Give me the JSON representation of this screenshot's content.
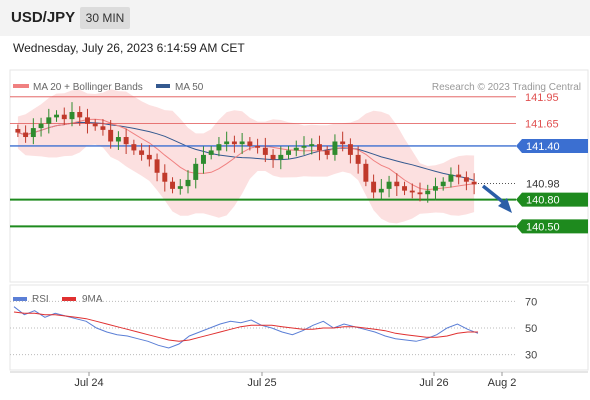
{
  "header": {
    "symbol": "USD/JPY",
    "interval": "30 MIN",
    "timestamp": "Wednesday, July 26, 2023 6:14:59 AM CET"
  },
  "legend": {
    "ma20_label": "MA 20 + Bollinger Bands",
    "ma50_label": "MA 50",
    "credit": "Research © 2023 Trading Central"
  },
  "rsi_legend": {
    "rsi_label": "RSI",
    "ma_label": "9MA"
  },
  "colors": {
    "ma20": "#f08080",
    "bollinger_fill": "#fbdada",
    "ma50": "#34598f",
    "resistance": "#e05050",
    "pivot": "#3b6fd1",
    "support": "#1e8a1e",
    "candle_up": "#2e8b2e",
    "candle_down": "#c0392b",
    "rsi": "#5b7fd6",
    "rsi_ma": "#e03030",
    "arrow": "#2b5ea7"
  },
  "chart_data": [
    {
      "type": "candlestick",
      "title": "",
      "x_ticks": [
        "Jul 24",
        "Jul 25",
        "Jul 26",
        "Aug 2"
      ],
      "ylim": [
        139.9,
        142.25
      ],
      "current_price": "140.98",
      "levels": [
        {
          "value": 141.95,
          "label": "141.95",
          "role": "resistance"
        },
        {
          "value": 141.65,
          "label": "141.65",
          "role": "resistance"
        },
        {
          "value": 141.4,
          "label": "141.40",
          "role": "pivot"
        },
        {
          "value": 140.8,
          "label": "140.80",
          "role": "support"
        },
        {
          "value": 140.5,
          "label": "140.50",
          "role": "support"
        }
      ],
      "forecast": "down",
      "series": [
        {
          "name": "MA 20 + Bollinger Bands"
        },
        {
          "name": "MA 50"
        }
      ],
      "approx_close": [
        141.55,
        141.5,
        141.6,
        141.65,
        141.72,
        141.75,
        141.7,
        141.78,
        141.72,
        141.65,
        141.62,
        141.58,
        141.45,
        141.5,
        141.42,
        141.35,
        141.3,
        141.25,
        141.1,
        141.0,
        140.92,
        140.95,
        141.02,
        141.2,
        141.3,
        141.35,
        141.42,
        141.45,
        141.42,
        141.45,
        141.4,
        141.38,
        141.3,
        141.25,
        141.3,
        141.35,
        141.38,
        141.4,
        141.42,
        141.35,
        141.3,
        141.45,
        141.42,
        141.3,
        141.2,
        141.0,
        140.88,
        140.92,
        141.0,
        140.95,
        140.9,
        140.88,
        140.86,
        140.9,
        140.95,
        141.0,
        141.08,
        141.05,
        141.0,
        140.97
      ]
    },
    {
      "type": "line",
      "title": "",
      "ylim": [
        20,
        80
      ],
      "y_ticks": [
        70,
        50,
        30
      ],
      "series": [
        {
          "name": "RSI",
          "values": [
            66,
            60,
            63,
            58,
            61,
            59,
            57,
            55,
            50,
            47,
            45,
            44,
            42,
            40,
            37,
            35,
            38,
            44,
            47,
            50,
            53,
            55,
            54,
            56,
            52,
            50,
            47,
            45,
            48,
            52,
            55,
            50,
            53,
            51,
            49,
            47,
            44,
            42,
            41,
            40,
            42,
            45,
            50,
            53,
            49,
            46
          ]
        },
        {
          "name": "9MA",
          "values": [
            62,
            61,
            61,
            60,
            60,
            59,
            58,
            57,
            55,
            53,
            51,
            49,
            47,
            45,
            43,
            41,
            40,
            41,
            43,
            45,
            47,
            49,
            51,
            52,
            52,
            52,
            51,
            50,
            49,
            49,
            50,
            50,
            51,
            51,
            50,
            49,
            48,
            46,
            45,
            44,
            43,
            43,
            44,
            46,
            47,
            47
          ]
        }
      ]
    }
  ]
}
